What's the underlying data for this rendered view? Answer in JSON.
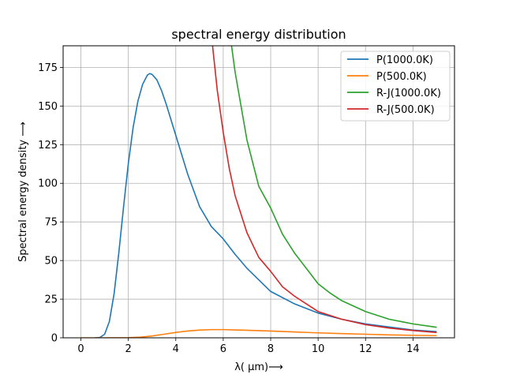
{
  "chart_data": {
    "type": "line",
    "title": "spectral energy distribution",
    "xlabel": "λ( μm)⟶",
    "ylabel": "Spectral energy density ⟶",
    "xlim": [
      -0.75,
      15.75
    ],
    "ylim": [
      0,
      189
    ],
    "xticks": [
      0,
      2,
      4,
      6,
      8,
      10,
      12,
      14
    ],
    "yticks": [
      0,
      25,
      50,
      75,
      100,
      125,
      150,
      175
    ],
    "grid": true,
    "legend_position": "top-right",
    "series": [
      {
        "name": "P(1000.0K)",
        "color": "#1f77b4",
        "x": [
          0.6,
          0.8,
          1.0,
          1.2,
          1.4,
          1.6,
          1.8,
          2.0,
          2.2,
          2.4,
          2.6,
          2.8,
          2.9,
          3.0,
          3.2,
          3.4,
          3.6,
          3.8,
          4.0,
          4.5,
          5.0,
          5.5,
          6.0,
          6.5,
          7.0,
          8.0,
          9.0,
          10.0,
          11.0,
          12.0,
          13.0,
          14.0,
          15.0
        ],
        "y": [
          0.0,
          0.2,
          2.3,
          10.6,
          28.6,
          55.3,
          85.0,
          113.0,
          136.0,
          153.0,
          164.0,
          170.0,
          171.0,
          170.5,
          167.0,
          160.0,
          151.0,
          141.0,
          131.0,
          106.0,
          85.0,
          72.0,
          64.0,
          54.0,
          45.0,
          30.0,
          22.0,
          16.0,
          12.0,
          9.0,
          7.0,
          5.0,
          4.0
        ]
      },
      {
        "name": "P(500.0K)",
        "color": "#ff7f0e",
        "x": [
          0.0,
          1.0,
          2.0,
          2.5,
          3.0,
          3.5,
          4.0,
          4.5,
          5.0,
          5.5,
          6.0,
          6.5,
          7.0,
          8.0,
          9.0,
          10.0,
          11.0,
          12.0,
          13.0,
          14.0,
          15.0
        ],
        "y": [
          0.0,
          0.0,
          0.1,
          0.4,
          1.2,
          2.3,
          3.5,
          4.4,
          5.0,
          5.3,
          5.3,
          5.1,
          4.9,
          4.4,
          3.8,
          3.2,
          2.7,
          2.3,
          1.9,
          1.6,
          1.4
        ]
      },
      {
        "name": "R-J(1000.0K)",
        "color": "#2ca02c",
        "x": [
          6.35,
          6.5,
          7.0,
          7.5,
          8.0,
          8.5,
          9.0,
          9.5,
          10.0,
          10.5,
          11.0,
          12.0,
          13.0,
          14.0,
          15.0
        ],
        "y": [
          189.0,
          172.0,
          128.0,
          98.0,
          84.0,
          67.0,
          55.0,
          45.0,
          35.0,
          29.0,
          24.0,
          17.0,
          12.0,
          9.0,
          6.8
        ]
      },
      {
        "name": "R-J(500.0K)",
        "color": "#d62728",
        "x": [
          5.55,
          5.75,
          6.0,
          6.25,
          6.5,
          7.0,
          7.5,
          8.0,
          8.5,
          9.0,
          9.5,
          10.0,
          11.0,
          12.0,
          13.0,
          14.0,
          15.0
        ],
        "y": [
          189.0,
          160.0,
          133.0,
          110.0,
          92.0,
          68.0,
          52.0,
          43.0,
          33.0,
          27.0,
          22.0,
          17.0,
          12.0,
          8.5,
          6.3,
          4.7,
          3.4
        ]
      }
    ]
  }
}
